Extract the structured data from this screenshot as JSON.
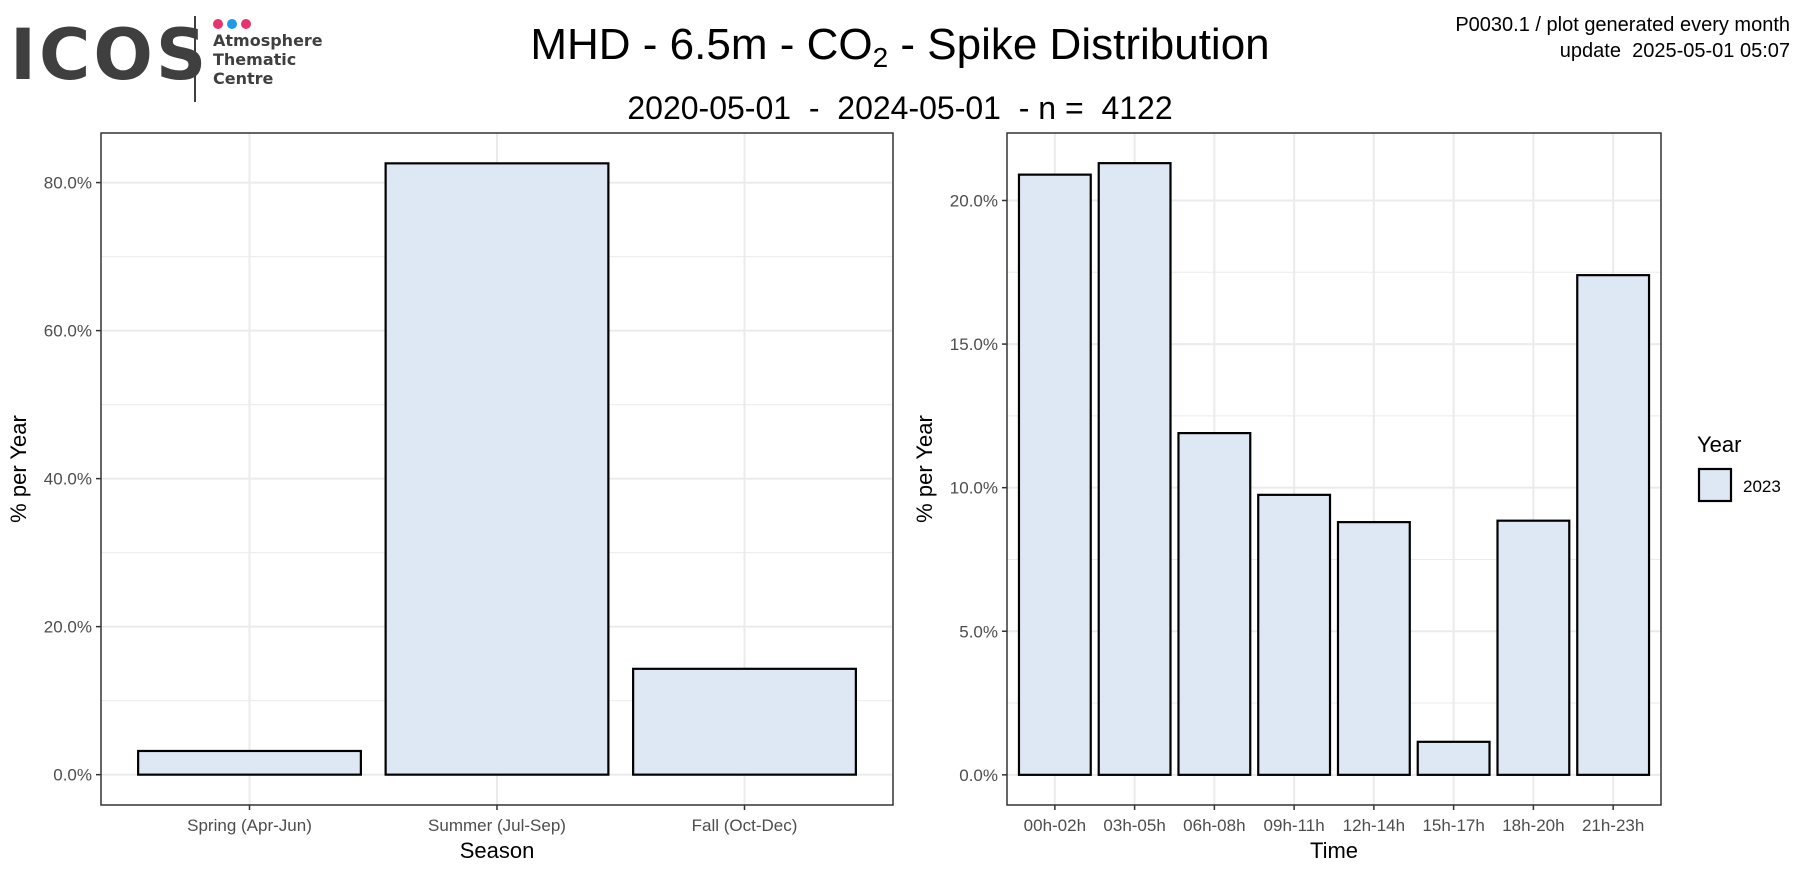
{
  "logo": {
    "wordmark": "ICOS",
    "lines": [
      "Atmosphere",
      "Thematic",
      "Centre"
    ],
    "dot_colors": [
      "#e8336d",
      "#1f9be5",
      "#e8336d"
    ],
    "text_color": "#3f3f3f"
  },
  "header": {
    "title_main": "MHD - 6.5m - CO",
    "title_sub": "2",
    "title_tail": " - Spike Distribution",
    "subtitle": "2020-05-01  -  2024-05-01  - n =  4122",
    "meta_line1": "P0030.1 / plot generated every month",
    "meta_line2": "update  2025-05-01 05:07"
  },
  "colors": {
    "bar_fill": "#dde8f4",
    "bar_stroke": "#000000",
    "grid": "#ebebeb",
    "panel_border": "#333333"
  },
  "chart_data": [
    {
      "type": "bar",
      "xlabel": "Season",
      "ylabel": "% per Year",
      "categories": [
        "Spring (Apr-Jun)",
        "Summer (Jul-Sep)",
        "Fall (Oct-Dec)"
      ],
      "series": [
        {
          "name": "2023",
          "values": [
            3.2,
            82.6,
            14.3
          ]
        }
      ],
      "ylim": [
        -4.1,
        86.7
      ],
      "yticks": [
        0,
        20,
        40,
        60,
        80
      ],
      "ytick_labels": [
        "0.0%",
        "20.0%",
        "40.0%",
        "60.0%",
        "80.0%"
      ],
      "grid": true
    },
    {
      "type": "bar",
      "xlabel": "Time",
      "ylabel": "% per Year",
      "categories": [
        "00h-02h",
        "03h-05h",
        "06h-08h",
        "09h-11h",
        "12h-14h",
        "15h-17h",
        "18h-20h",
        "21h-23h"
      ],
      "series": [
        {
          "name": "2023",
          "values": [
            20.9,
            21.3,
            11.9,
            9.75,
            8.8,
            1.15,
            8.85,
            17.4
          ]
        }
      ],
      "ylim": [
        -1.05,
        22.35
      ],
      "yticks": [
        0,
        5,
        10,
        15,
        20
      ],
      "ytick_labels": [
        "0.0%",
        "5.0%",
        "10.0%",
        "15.0%",
        "20.0%"
      ],
      "grid": true,
      "legend": {
        "title": "Year",
        "entries": [
          "2023"
        ],
        "placement": "right"
      }
    }
  ]
}
